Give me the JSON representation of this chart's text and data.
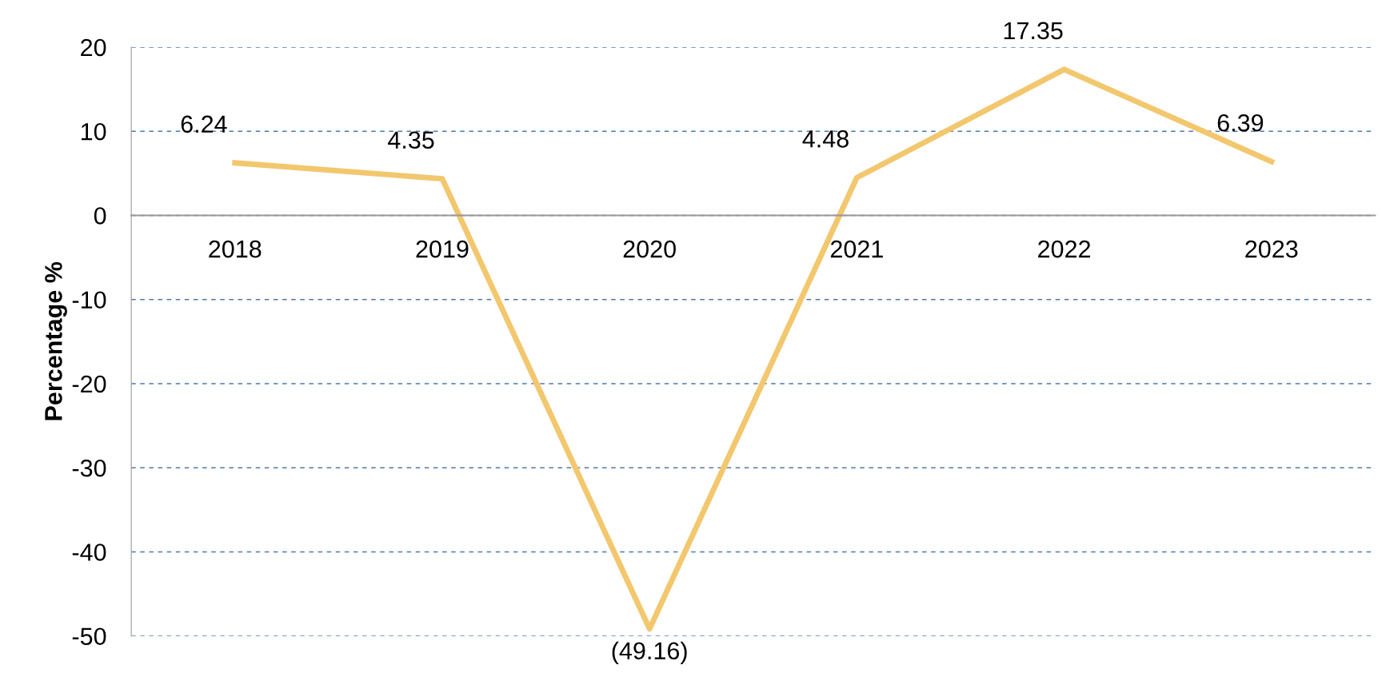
{
  "chart_data": {
    "type": "line",
    "ylabel": "Percentage %",
    "categories": [
      "2018",
      "2019",
      "2020",
      "2021",
      "2022",
      "2023"
    ],
    "series": [
      {
        "color": "#f2c76e",
        "values": [
          6.24,
          4.35,
          -49.16,
          4.48,
          17.35,
          6.39
        ],
        "value_labels": [
          "6.24",
          "4.35",
          "(49.16)",
          "4.48",
          "17.35",
          "6.39"
        ]
      }
    ],
    "ylim": [
      -50,
      20
    ],
    "yticks": [
      -50,
      -40,
      -30,
      -20,
      -10,
      0,
      10,
      20
    ],
    "grid": "y",
    "marker": "none",
    "line_style": "solid",
    "legend": false
  }
}
